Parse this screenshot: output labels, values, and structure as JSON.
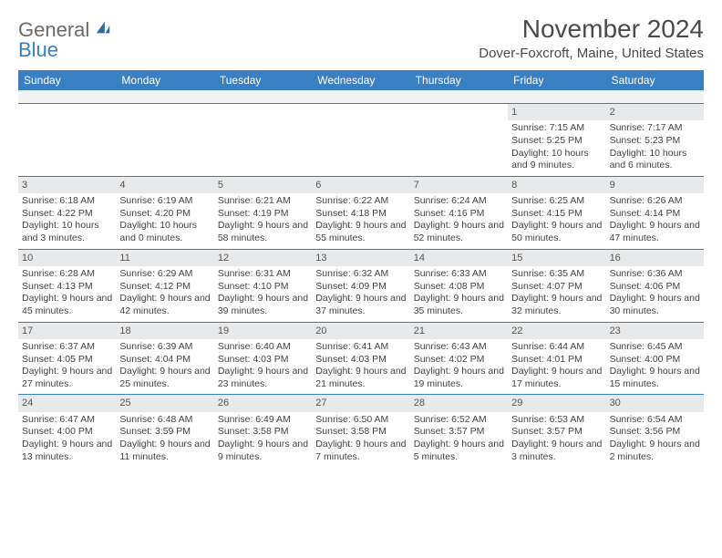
{
  "logo": {
    "top": "General",
    "bottom": "Blue"
  },
  "title": "November 2024",
  "location": "Dover-Foxcroft, Maine, United States",
  "colors": {
    "header_bg": "#3a7fc2",
    "header_text": "#ffffff",
    "daynum_bg": "#e8e9ea",
    "border": "#3a7fc2",
    "text": "#444444",
    "logo_top": "#6a6a6a",
    "logo_bottom": "#3a7fc2"
  },
  "weekdays": [
    "Sunday",
    "Monday",
    "Tuesday",
    "Wednesday",
    "Thursday",
    "Friday",
    "Saturday"
  ],
  "layout": {
    "columns": 7,
    "rows": 5,
    "cell_font_size": 10.5
  },
  "weeks": [
    [
      {
        "n": "",
        "sr": "",
        "ss": "",
        "dl": ""
      },
      {
        "n": "",
        "sr": "",
        "ss": "",
        "dl": ""
      },
      {
        "n": "",
        "sr": "",
        "ss": "",
        "dl": ""
      },
      {
        "n": "",
        "sr": "",
        "ss": "",
        "dl": ""
      },
      {
        "n": "",
        "sr": "",
        "ss": "",
        "dl": ""
      },
      {
        "n": "1",
        "sr": "Sunrise: 7:15 AM",
        "ss": "Sunset: 5:25 PM",
        "dl": "Daylight: 10 hours and 9 minutes."
      },
      {
        "n": "2",
        "sr": "Sunrise: 7:17 AM",
        "ss": "Sunset: 5:23 PM",
        "dl": "Daylight: 10 hours and 6 minutes."
      }
    ],
    [
      {
        "n": "3",
        "sr": "Sunrise: 6:18 AM",
        "ss": "Sunset: 4:22 PM",
        "dl": "Daylight: 10 hours and 3 minutes."
      },
      {
        "n": "4",
        "sr": "Sunrise: 6:19 AM",
        "ss": "Sunset: 4:20 PM",
        "dl": "Daylight: 10 hours and 0 minutes."
      },
      {
        "n": "5",
        "sr": "Sunrise: 6:21 AM",
        "ss": "Sunset: 4:19 PM",
        "dl": "Daylight: 9 hours and 58 minutes."
      },
      {
        "n": "6",
        "sr": "Sunrise: 6:22 AM",
        "ss": "Sunset: 4:18 PM",
        "dl": "Daylight: 9 hours and 55 minutes."
      },
      {
        "n": "7",
        "sr": "Sunrise: 6:24 AM",
        "ss": "Sunset: 4:16 PM",
        "dl": "Daylight: 9 hours and 52 minutes."
      },
      {
        "n": "8",
        "sr": "Sunrise: 6:25 AM",
        "ss": "Sunset: 4:15 PM",
        "dl": "Daylight: 9 hours and 50 minutes."
      },
      {
        "n": "9",
        "sr": "Sunrise: 6:26 AM",
        "ss": "Sunset: 4:14 PM",
        "dl": "Daylight: 9 hours and 47 minutes."
      }
    ],
    [
      {
        "n": "10",
        "sr": "Sunrise: 6:28 AM",
        "ss": "Sunset: 4:13 PM",
        "dl": "Daylight: 9 hours and 45 minutes."
      },
      {
        "n": "11",
        "sr": "Sunrise: 6:29 AM",
        "ss": "Sunset: 4:12 PM",
        "dl": "Daylight: 9 hours and 42 minutes."
      },
      {
        "n": "12",
        "sr": "Sunrise: 6:31 AM",
        "ss": "Sunset: 4:10 PM",
        "dl": "Daylight: 9 hours and 39 minutes."
      },
      {
        "n": "13",
        "sr": "Sunrise: 6:32 AM",
        "ss": "Sunset: 4:09 PM",
        "dl": "Daylight: 9 hours and 37 minutes."
      },
      {
        "n": "14",
        "sr": "Sunrise: 6:33 AM",
        "ss": "Sunset: 4:08 PM",
        "dl": "Daylight: 9 hours and 35 minutes."
      },
      {
        "n": "15",
        "sr": "Sunrise: 6:35 AM",
        "ss": "Sunset: 4:07 PM",
        "dl": "Daylight: 9 hours and 32 minutes."
      },
      {
        "n": "16",
        "sr": "Sunrise: 6:36 AM",
        "ss": "Sunset: 4:06 PM",
        "dl": "Daylight: 9 hours and 30 minutes."
      }
    ],
    [
      {
        "n": "17",
        "sr": "Sunrise: 6:37 AM",
        "ss": "Sunset: 4:05 PM",
        "dl": "Daylight: 9 hours and 27 minutes."
      },
      {
        "n": "18",
        "sr": "Sunrise: 6:39 AM",
        "ss": "Sunset: 4:04 PM",
        "dl": "Daylight: 9 hours and 25 minutes."
      },
      {
        "n": "19",
        "sr": "Sunrise: 6:40 AM",
        "ss": "Sunset: 4:03 PM",
        "dl": "Daylight: 9 hours and 23 minutes."
      },
      {
        "n": "20",
        "sr": "Sunrise: 6:41 AM",
        "ss": "Sunset: 4:03 PM",
        "dl": "Daylight: 9 hours and 21 minutes."
      },
      {
        "n": "21",
        "sr": "Sunrise: 6:43 AM",
        "ss": "Sunset: 4:02 PM",
        "dl": "Daylight: 9 hours and 19 minutes."
      },
      {
        "n": "22",
        "sr": "Sunrise: 6:44 AM",
        "ss": "Sunset: 4:01 PM",
        "dl": "Daylight: 9 hours and 17 minutes."
      },
      {
        "n": "23",
        "sr": "Sunrise: 6:45 AM",
        "ss": "Sunset: 4:00 PM",
        "dl": "Daylight: 9 hours and 15 minutes."
      }
    ],
    [
      {
        "n": "24",
        "sr": "Sunrise: 6:47 AM",
        "ss": "Sunset: 4:00 PM",
        "dl": "Daylight: 9 hours and 13 minutes."
      },
      {
        "n": "25",
        "sr": "Sunrise: 6:48 AM",
        "ss": "Sunset: 3:59 PM",
        "dl": "Daylight: 9 hours and 11 minutes."
      },
      {
        "n": "26",
        "sr": "Sunrise: 6:49 AM",
        "ss": "Sunset: 3:58 PM",
        "dl": "Daylight: 9 hours and 9 minutes."
      },
      {
        "n": "27",
        "sr": "Sunrise: 6:50 AM",
        "ss": "Sunset: 3:58 PM",
        "dl": "Daylight: 9 hours and 7 minutes."
      },
      {
        "n": "28",
        "sr": "Sunrise: 6:52 AM",
        "ss": "Sunset: 3:57 PM",
        "dl": "Daylight: 9 hours and 5 minutes."
      },
      {
        "n": "29",
        "sr": "Sunrise: 6:53 AM",
        "ss": "Sunset: 3:57 PM",
        "dl": "Daylight: 9 hours and 3 minutes."
      },
      {
        "n": "30",
        "sr": "Sunrise: 6:54 AM",
        "ss": "Sunset: 3:56 PM",
        "dl": "Daylight: 9 hours and 2 minutes."
      }
    ]
  ]
}
